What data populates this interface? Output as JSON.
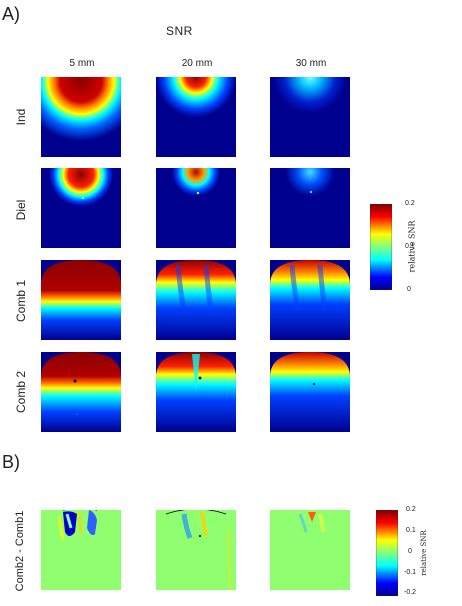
{
  "panel_a": {
    "label": "A)",
    "title": "SNR",
    "columns": [
      "5 mm",
      "20 mm",
      "30 mm"
    ],
    "rows": [
      "Ind",
      "Diel",
      "Comb 1",
      "Comb 2"
    ],
    "colorbar": {
      "label": "relative SNR",
      "ticks": [
        "0.2",
        "0.1",
        "0"
      ],
      "colors": [
        "#7f0000",
        "#ff0000",
        "#ffff00",
        "#00ffff",
        "#0000ff",
        "#00008f"
      ]
    }
  },
  "panel_b": {
    "label": "B)",
    "row": "Comb2 - Comb1",
    "colorbar": {
      "label": "relative SNR",
      "ticks": [
        "0.2",
        "0.1",
        "0",
        "-0.1",
        "-0.2"
      ]
    }
  }
}
